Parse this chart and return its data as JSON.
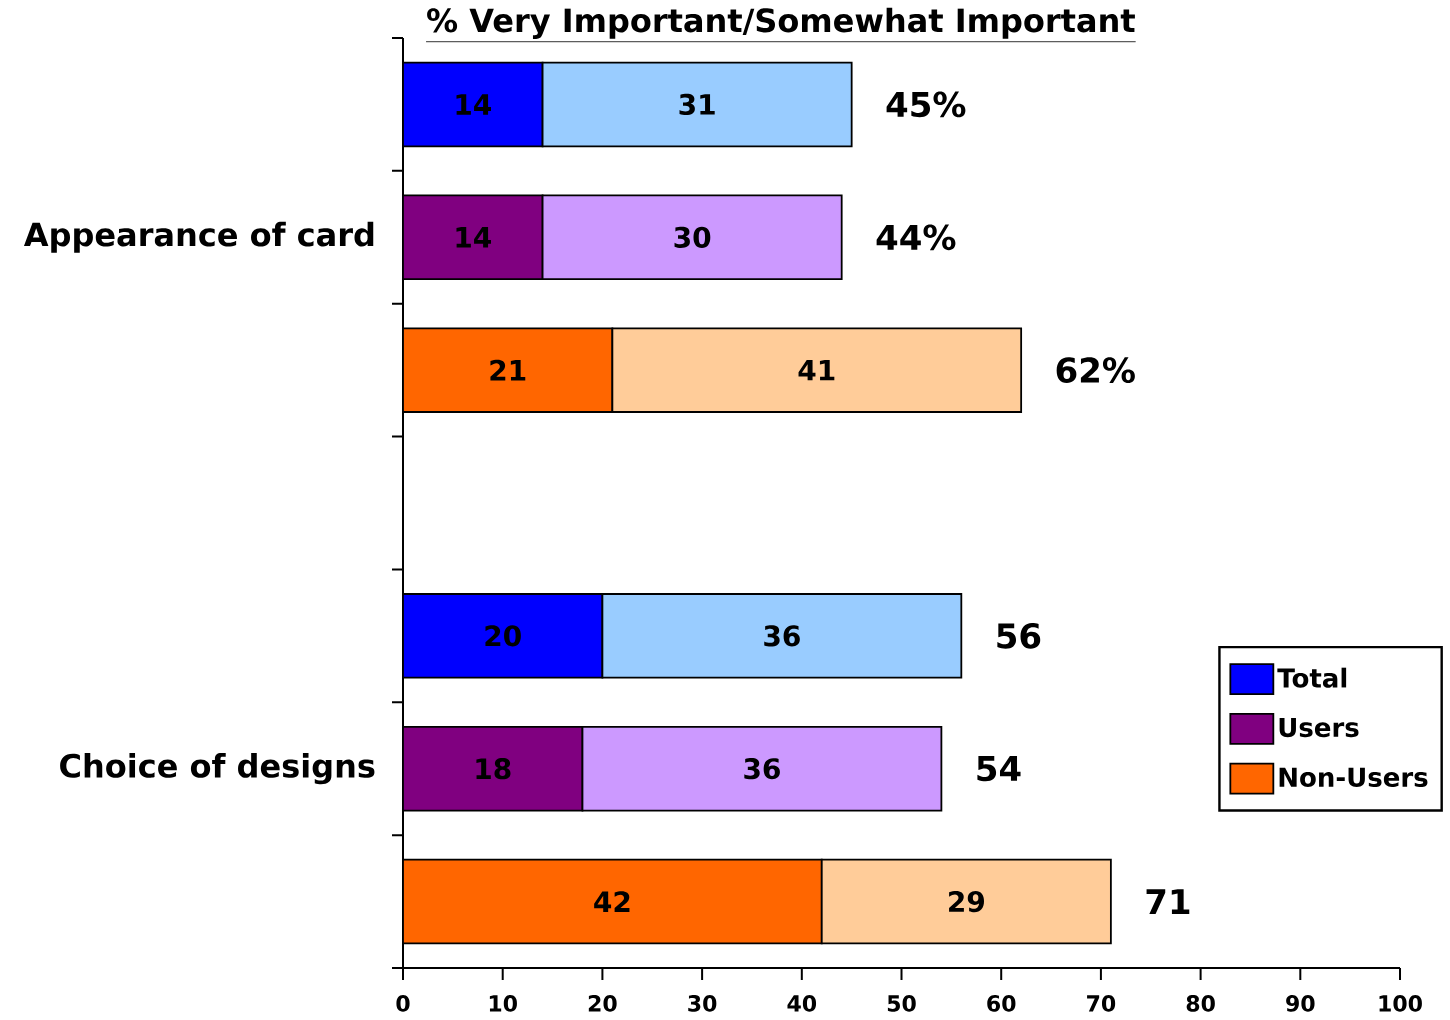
{
  "chart_data": {
    "type": "bar",
    "orientation": "horizontal",
    "stacked": true,
    "title": "% Very Important/Somewhat Important",
    "categories": [
      null,
      "Appearance of card",
      null,
      null,
      null,
      "Choice of designs",
      null
    ],
    "series": [
      {
        "name": "Total",
        "color": "#0000ff",
        "values": [
          14,
          null,
          null,
          null,
          20,
          null,
          null
        ]
      },
      {
        "color": "#99ccff",
        "values": [
          31,
          null,
          null,
          null,
          36,
          null,
          null
        ]
      },
      {
        "name": "Users",
        "color": "#800080",
        "values": [
          null,
          14,
          null,
          null,
          null,
          18,
          null
        ]
      },
      {
        "color": "#cc99ff",
        "values": [
          null,
          30,
          null,
          null,
          null,
          36,
          null
        ]
      },
      {
        "name": "Non-Users",
        "color": "#ff6600",
        "values": [
          null,
          null,
          21,
          null,
          null,
          null,
          42
        ]
      },
      {
        "color": "#ffcc99",
        "values": [
          null,
          null,
          41,
          null,
          null,
          null,
          29
        ]
      }
    ],
    "xlim": [
      0,
      100
    ],
    "xticks": [
      0,
      10,
      20,
      30,
      40,
      50,
      60,
      70,
      80,
      90,
      100
    ],
    "data_labels": true,
    "totals": [
      "45%",
      "44%",
      "62%",
      null,
      "56",
      "54",
      "71"
    ],
    "legend": "bottom right"
  }
}
